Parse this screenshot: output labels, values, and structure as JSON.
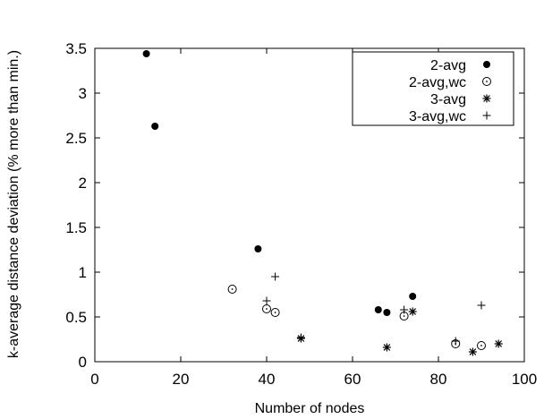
{
  "chart_data": {
    "type": "scatter",
    "title": "",
    "xlabel": "Number of nodes",
    "ylabel": "k-average distance deviation (% more than min.)",
    "xlim": [
      0,
      100
    ],
    "ylim": [
      0,
      3.5
    ],
    "xticks": [
      0,
      20,
      40,
      60,
      80,
      100
    ],
    "yticks": [
      0,
      0.5,
      1,
      1.5,
      2,
      2.5,
      3,
      3.5
    ],
    "xtick_labels": [
      "0",
      "20",
      "40",
      "60",
      "80",
      "100"
    ],
    "ytick_labels": [
      "0",
      "0.5",
      "1",
      "1.5",
      "2",
      "2.5",
      "3",
      "3.5"
    ],
    "grid": false,
    "legend_position": "top-right",
    "series": [
      {
        "name": "2-avg",
        "marker": "filled-circle",
        "color": "#000000",
        "points": [
          [
            12,
            3.44
          ],
          [
            14,
            2.63
          ],
          [
            38,
            1.26
          ],
          [
            66,
            0.58
          ],
          [
            68,
            0.55
          ],
          [
            74,
            0.73
          ]
        ]
      },
      {
        "name": "2-avg,wc",
        "marker": "open-circle",
        "color": "#000000",
        "points": [
          [
            32,
            0.81
          ],
          [
            40,
            0.59
          ],
          [
            42,
            0.55
          ],
          [
            72,
            0.51
          ],
          [
            84,
            0.2
          ],
          [
            90,
            0.18
          ]
        ]
      },
      {
        "name": "3-avg",
        "marker": "asterisk",
        "color": "#000000",
        "points": [
          [
            48,
            0.26
          ],
          [
            68,
            0.16
          ],
          [
            74,
            0.56
          ],
          [
            88,
            0.11
          ],
          [
            94,
            0.2
          ]
        ]
      },
      {
        "name": "3-avg,wc",
        "marker": "plus",
        "color": "#000000",
        "points": [
          [
            40,
            0.68
          ],
          [
            42,
            0.95
          ],
          [
            48,
            0.27
          ],
          [
            72,
            0.58
          ],
          [
            84,
            0.23
          ],
          [
            90,
            0.63
          ]
        ]
      }
    ]
  }
}
